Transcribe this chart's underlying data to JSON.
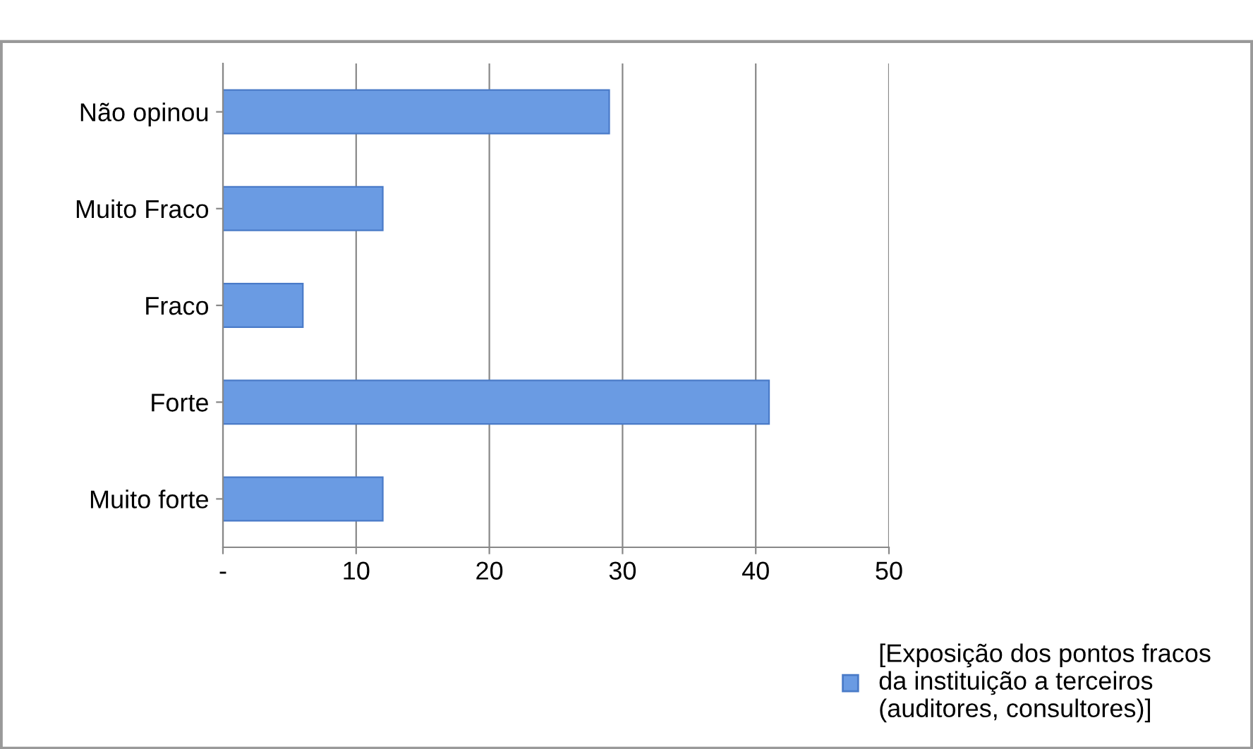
{
  "chart_data": {
    "type": "bar",
    "orientation": "horizontal",
    "categories": [
      "Não opinou",
      "Muito Fraco",
      "Fraco",
      "Forte",
      "Muito forte"
    ],
    "series": [
      {
        "name": "[Exposição dos pontos fracos\nda instituição a terceiros\n(auditores, consultores)]",
        "color": "#6a9be3",
        "values": [
          29,
          12,
          6,
          41,
          12
        ]
      }
    ],
    "xlim": [
      0,
      50
    ],
    "xticks": [
      {
        "value": 0,
        "label": "-"
      },
      10,
      20,
      30,
      40,
      50
    ],
    "grid": "x",
    "legend": "bottom right"
  }
}
